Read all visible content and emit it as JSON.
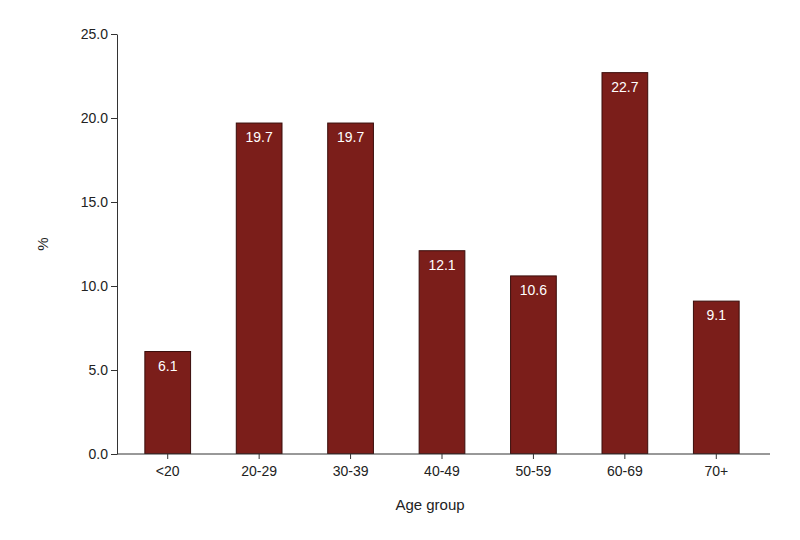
{
  "chart_data": {
    "type": "bar",
    "x_label": "Age group",
    "y_label": "%",
    "categories": [
      "<20",
      "20-29",
      "30-39",
      "40-49",
      "50-59",
      "60-69",
      "70+"
    ],
    "values": [
      6.1,
      19.7,
      19.7,
      12.1,
      10.6,
      22.7,
      9.1
    ],
    "color": "#7b1e1a",
    "ylim": [
      0,
      25
    ],
    "yticks": [
      {
        "value": 0,
        "label": "0.0"
      },
      {
        "value": 5,
        "label": "5.0"
      },
      {
        "value": 10,
        "label": "10.0"
      },
      {
        "value": 15,
        "label": "15.0"
      },
      {
        "value": 20,
        "label": "20.0"
      },
      {
        "value": 25,
        "label": "25.0"
      }
    ],
    "data_labels": true,
    "grid": false
  }
}
